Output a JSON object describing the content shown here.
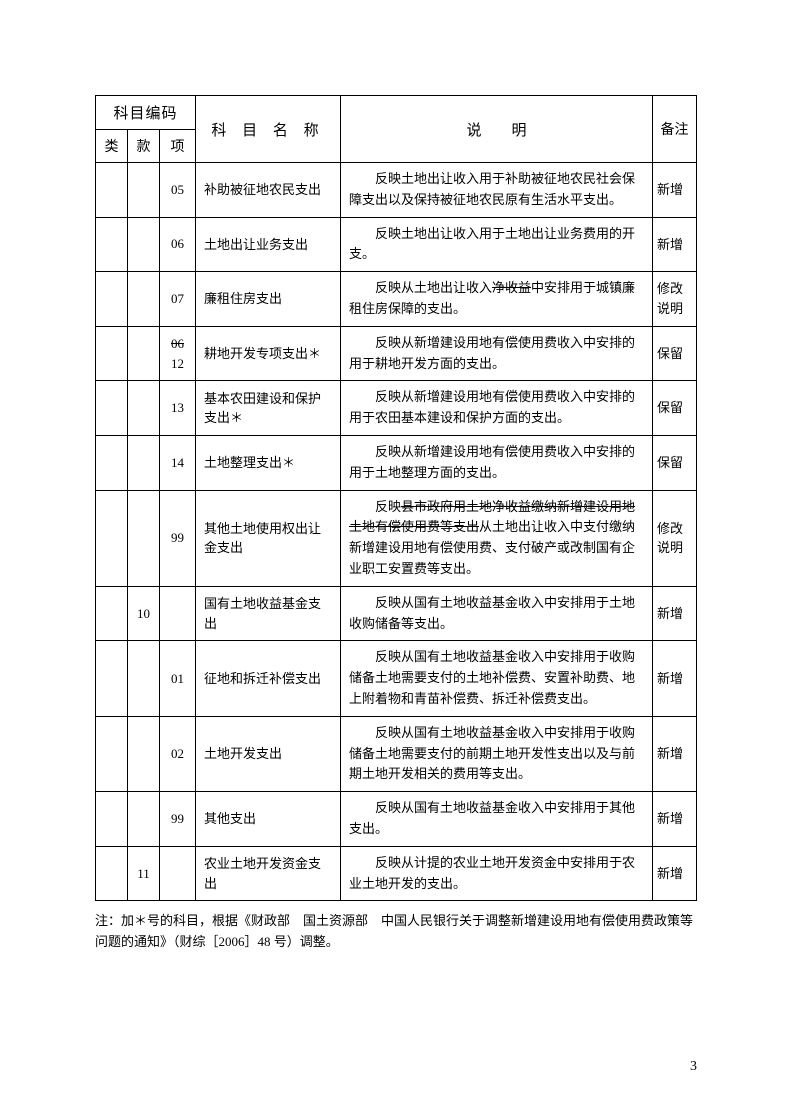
{
  "headers": {
    "code_group": "科目编码",
    "lei": "类",
    "kuan": "款",
    "xiang": "项",
    "name": "科 目 名 称",
    "desc": "说",
    "desc2": "明",
    "remark": "备注"
  },
  "rows": [
    {
      "lei": "",
      "kuan": "",
      "xiang": "05",
      "name": "补助被征地农民支出",
      "desc_parts": [
        {
          "text": "反映土地出让收入用于补助被征地农民社会保障支出以及保持被征地农民原有生活水平支出。"
        }
      ],
      "remark": "新增"
    },
    {
      "lei": "",
      "kuan": "",
      "xiang": "06",
      "name": "土地出让业务支出",
      "desc_parts": [
        {
          "text": "反映土地出让收入用于土地出让业务费用的开支。"
        }
      ],
      "remark": "新增"
    },
    {
      "lei": "",
      "kuan": "",
      "xiang": "07",
      "name": "廉租住房支出",
      "desc_parts": [
        {
          "text": "反映从土地出让收入"
        },
        {
          "text": "净收益",
          "strike": true
        },
        {
          "text": "中安排用于城镇廉租住房保障的支出。"
        }
      ],
      "remark": "修改说明"
    },
    {
      "lei": "",
      "kuan": "",
      "xiang_stack": [
        {
          "text": "06",
          "strike": true
        },
        {
          "text": "12"
        }
      ],
      "name": "耕地开发专项支出＊",
      "desc_parts": [
        {
          "text": "反映从新增建设用地有偿使用费收入中安排的用于耕地开发方面的支出。"
        }
      ],
      "remark": "保留"
    },
    {
      "lei": "",
      "kuan": "",
      "xiang": "13",
      "name": "基本农田建设和保护支出＊",
      "desc_parts": [
        {
          "text": "反映从新增建设用地有偿使用费收入中安排的用于农田基本建设和保护方面的支出。"
        }
      ],
      "remark": "保留"
    },
    {
      "lei": "",
      "kuan": "",
      "xiang": "14",
      "name": "土地整理支出＊",
      "desc_parts": [
        {
          "text": "反映从新增建设用地有偿使用费收入中安排的用于土地整理方面的支出。"
        }
      ],
      "remark": "保留"
    },
    {
      "lei": "",
      "kuan": "",
      "xiang": "99",
      "name": "其他土地使用权出让金支出",
      "desc_parts": [
        {
          "text": "反映"
        },
        {
          "text": "县市政府用土地净收益缴纳新增建设用地土地有偿使用费等支出",
          "strike": true
        },
        {
          "text": "从土地出让收入中支付缴纳新增建设用地有偿使用费、支付破产或改制国有企业职工安置费等支出。"
        }
      ],
      "remark": "修改说明"
    },
    {
      "lei": "",
      "kuan": "10",
      "xiang": "",
      "name": "国有土地收益基金支出",
      "desc_parts": [
        {
          "text": "反映从国有土地收益基金收入中安排用于土地收购储备等支出。"
        }
      ],
      "remark": "新增"
    },
    {
      "lei": "",
      "kuan": "",
      "xiang": "01",
      "name": "征地和拆迁补偿支出",
      "desc_parts": [
        {
          "text": "反映从国有土地收益基金收入中安排用于收购储备土地需要支付的土地补偿费、安置补助费、地上附着物和青苗补偿费、拆迁补偿费支出。"
        }
      ],
      "remark": "新增"
    },
    {
      "lei": "",
      "kuan": "",
      "xiang": "02",
      "name": "土地开发支出",
      "desc_parts": [
        {
          "text": "反映从国有土地收益基金收入中安排用于收购储备土地需要支付的前期土地开发性支出以及与前期土地开发相关的费用等支出。"
        }
      ],
      "remark": "新增"
    },
    {
      "lei": "",
      "kuan": "",
      "xiang": "99",
      "name": "其他支出",
      "desc_parts": [
        {
          "text": "反映从国有土地收益基金收入中安排用于其他支出。"
        }
      ],
      "remark": "新增"
    },
    {
      "lei": "",
      "kuan": "11",
      "xiang": "",
      "name": "农业土地开发资金支出",
      "desc_parts": [
        {
          "text": "反映从计提的农业土地开发资金中安排用于农业土地开发的支出。"
        }
      ],
      "remark": "新增"
    }
  ],
  "footnote": "注：加＊号的科目，根据《财政部　国土资源部　中国人民银行关于调整新增建设用地有偿使用费政策等问题的通知》（财综［2006］48 号）调整。",
  "page_number": "3"
}
